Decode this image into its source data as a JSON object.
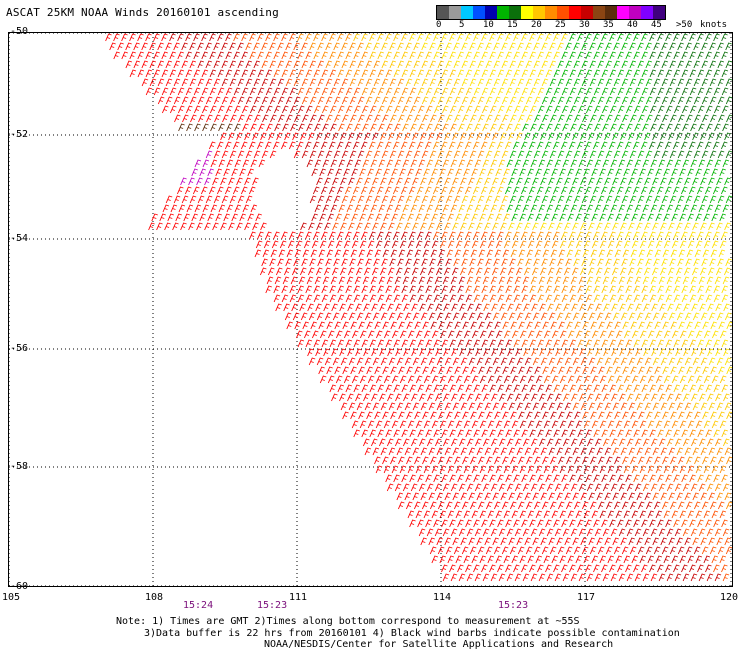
{
  "title": "ASCAT 25KM NOAA Winds 20160101 ascending",
  "colorbar": {
    "colors": [
      "#555555",
      "#9a9a9a",
      "#00c8ff",
      "#0050ff",
      "#0000b0",
      "#00b400",
      "#0b700b",
      "#ffff00",
      "#ffc800",
      "#ff8c00",
      "#ff5000",
      "#ff0000",
      "#c80000",
      "#8b4513",
      "#5a2d0c",
      "#ff00ff",
      "#c000c0",
      "#8000ff",
      "#40007f"
    ],
    "labels": [
      "0",
      "5",
      "10",
      "15",
      "20",
      "25",
      "30",
      "35",
      "40",
      "45",
      ">50"
    ],
    "units": "knots"
  },
  "axes": {
    "y_ticks": [
      "-50",
      "-52",
      "-54",
      "-56",
      "-58",
      "-60"
    ],
    "x_ticks": [
      "105",
      "108",
      "111",
      "114",
      "117",
      "120"
    ]
  },
  "pass_times": [
    "15:24",
    "15:23",
    "15:23"
  ],
  "notes": [
    "Note: 1) Times are GMT 2)Times along bottom correspond to measurement at ~55S",
    "3)Data buffer is 22 hrs from 20160101 4) Black wind barbs indicate possible contamination",
    "NOAA/NESDIS/Center for Satellite Applications and Research"
  ]
}
